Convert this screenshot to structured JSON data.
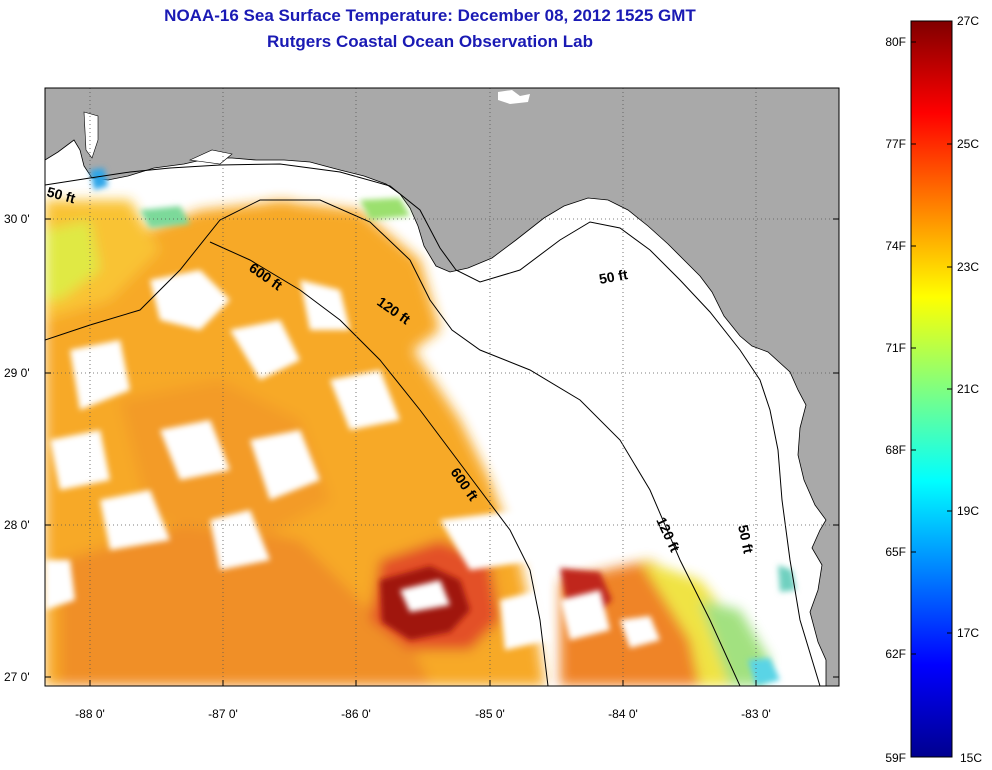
{
  "title": {
    "line1": "NOAA-16 Sea Surface Temperature:  December 08, 2012 1525 GMT",
    "line2": "Rutgers Coastal Ocean Observation Lab"
  },
  "map": {
    "lat_labels": [
      "30 0'",
      "29 0'",
      "28 0'",
      "27 0'"
    ],
    "lon_labels": [
      "-88 0'",
      "-87 0'",
      "-86 0'",
      "-85 0'",
      "-84 0'",
      "-83 0'"
    ],
    "depth_labels": [
      "50 ft",
      "600 ft",
      "120 ft",
      "50 ft",
      "600 ft",
      "120 ft",
      "50 ft"
    ],
    "colors": {
      "land": "#a9a9a9",
      "background": "#ffffff",
      "contour": "#000000"
    }
  },
  "colorbar": {
    "fahrenheit": [
      "80F",
      "77F",
      "74F",
      "71F",
      "68F",
      "65F",
      "62F",
      "59F"
    ],
    "celsius": [
      "27C",
      "25C",
      "23C",
      "21C",
      "19C",
      "17C",
      "15C"
    ],
    "range_c": [
      15,
      27
    ]
  }
}
